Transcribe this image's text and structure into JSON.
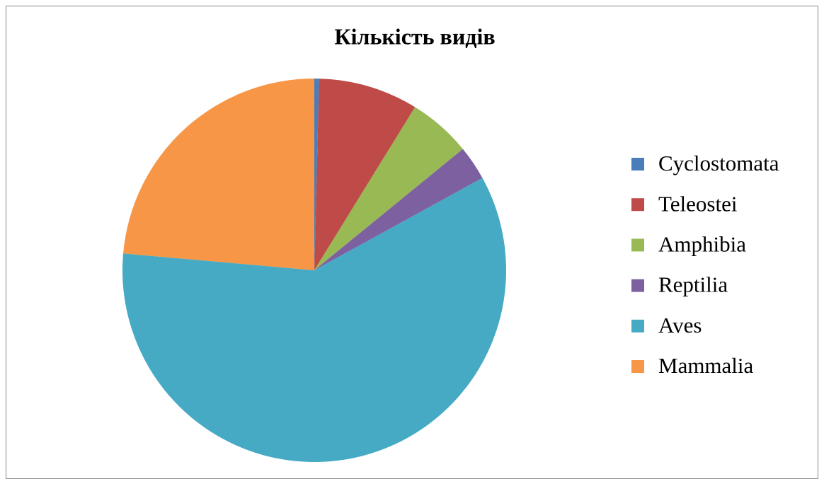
{
  "chart_data": {
    "type": "pie",
    "title": "Кількість видів",
    "categories": [
      "Cyclostomata",
      "Teleostei",
      "Amphibia",
      "Reptilia",
      "Aves",
      "Mammalia"
    ],
    "values": [
      0.4,
      8.4,
      5.3,
      2.9,
      59.4,
      23.6
    ],
    "colors": [
      "#4a7ebb",
      "#be4b48",
      "#98b954",
      "#7d60a0",
      "#46aac5",
      "#f79646"
    ],
    "legend": "right"
  }
}
